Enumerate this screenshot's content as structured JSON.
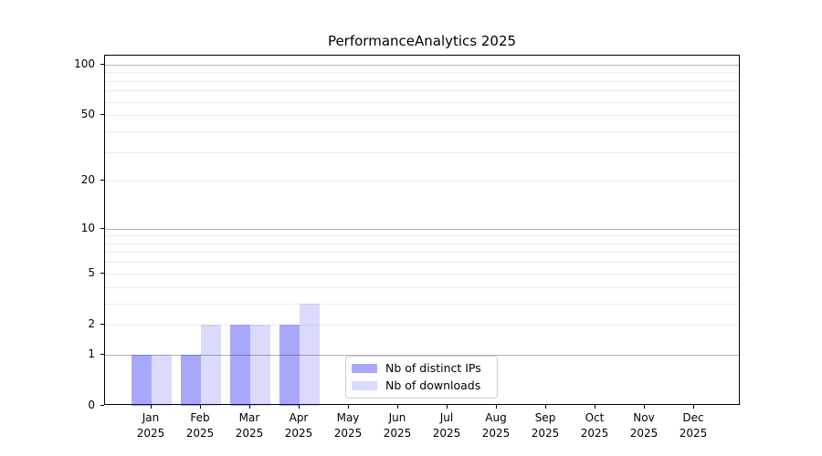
{
  "chart_data": {
    "type": "bar",
    "title": "PerformanceAnalytics 2025",
    "categories": [
      "Jan",
      "Feb",
      "Mar",
      "Apr",
      "May",
      "Jun",
      "Jul",
      "Aug",
      "Sep",
      "Oct",
      "Nov",
      "Dec"
    ],
    "category_year": "2025",
    "series": [
      {
        "name": "Nb of distinct IPs",
        "color": "#0707f0",
        "alpha": 0.35,
        "values": [
          1,
          1,
          2,
          2,
          0,
          0,
          0,
          0,
          0,
          0,
          0,
          0
        ]
      },
      {
        "name": "Nb of downloads",
        "color": "#0707f0",
        "alpha": 0.15,
        "values": [
          1,
          2,
          2,
          3,
          0,
          0,
          0,
          0,
          0,
          0,
          0,
          0
        ]
      }
    ],
    "xlabel": "",
    "ylabel": "",
    "yscale": "log1p",
    "yticks": [
      0,
      1,
      2,
      5,
      10,
      20,
      50,
      100
    ],
    "ylim": [
      0,
      113
    ],
    "grid": {
      "on": true,
      "major_lines": [
        1,
        10,
        100
      ],
      "minor_lines": [
        2,
        3,
        4,
        5,
        6,
        7,
        8,
        9,
        20,
        30,
        40,
        50,
        60,
        70,
        80,
        90
      ],
      "major_color": "#b3b3b3",
      "minor_color": "#ececec"
    },
    "legend": {
      "position": "lower center"
    },
    "axis_color": "#000000"
  }
}
